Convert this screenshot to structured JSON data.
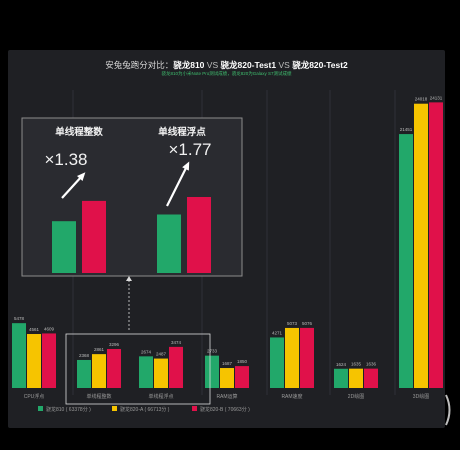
{
  "colors": {
    "series_0": "#22a86a",
    "series_1": "#f6c400",
    "series_2": "#e0114a",
    "grid": "#2f3138",
    "text": "#9a9a9a",
    "inset_border": "#8c8c8c",
    "callout_border": "#dddddd"
  },
  "header": {
    "prefix": "安兔兔跑分对比：",
    "item_0": "骁龙810",
    "vs_0": "VS",
    "item_1": "骁龙820-Test1",
    "vs_1": "VS",
    "item_2": "骁龙820-Test2",
    "subtitle": "骁龙810为小米Note Pro测试成绩，骁龙820为Galaxy S7测试成绩"
  },
  "chart_data": {
    "type": "bar",
    "grid": true,
    "legend_position": "bottom",
    "categories": [
      "CPU浮点",
      "单线程整数",
      "单线程浮点",
      "RAM运算",
      "RAM速度",
      "2D绘图",
      "3D绘图"
    ],
    "series": [
      {
        "name": "骁龙810 ( 63378分 )",
        "values": [
          5478,
          2368,
          2674,
          2733,
          4271,
          1624,
          21451
        ]
      },
      {
        "name": "骁龙820-A ( 66713分 )",
        "values": [
          4561,
          2861,
          2487,
          1687,
          5073,
          1635,
          24018
        ]
      },
      {
        "name": "骁龙820-B ( 70663分 )",
        "values": [
          4609,
          3296,
          3474,
          1850,
          5076,
          1636,
          24131
        ]
      }
    ],
    "inset": {
      "labels": [
        "单线程整数",
        "单线程浮点"
      ],
      "ratios": [
        "×1.38",
        "×1.77"
      ]
    }
  }
}
